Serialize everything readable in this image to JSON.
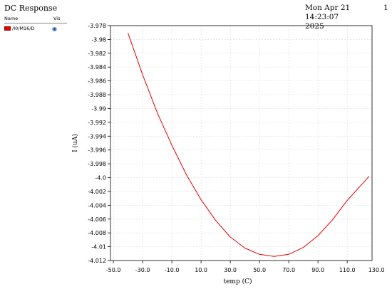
{
  "header": {
    "title": "DC Response",
    "timestamp_line1": "Mon Apr 21 14:23:07",
    "timestamp_line2": "2025",
    "page_number": "1"
  },
  "legend": {
    "name_header": "Name",
    "vis_header": "Vis",
    "items": [
      {
        "label": "/I0/M16/D",
        "color": "#e60000",
        "icon": "eye-icon"
      }
    ]
  },
  "chart_data": {
    "type": "line",
    "title": "",
    "xlabel": "temp (C)",
    "ylabel": "I (uA)",
    "xlim": [
      -52,
      127
    ],
    "ylim": [
      -4.012,
      -3.978
    ],
    "grid": true,
    "x_ticks": [
      -50,
      -30,
      -10,
      10,
      30,
      50,
      70,
      90,
      110,
      130
    ],
    "x_tick_labels": [
      "-50.0",
      "-30.0",
      "-10.0",
      "10.0",
      "30.0",
      "50.0",
      "70.0",
      "90.0",
      "110.0",
      "130.0"
    ],
    "y_ticks": [
      -3.978,
      -3.98,
      -3.982,
      -3.984,
      -3.986,
      -3.988,
      -3.99,
      -3.992,
      -3.994,
      -3.996,
      -3.998,
      -4.0,
      -4.002,
      -4.004,
      -4.006,
      -4.008,
      -4.01,
      -4.012
    ],
    "y_tick_labels": [
      "-3.978",
      "-3.98",
      "-3.982",
      "-3.984",
      "-3.986",
      "-3.988",
      "-3.99",
      "-3.992",
      "-3.994",
      "-3.996",
      "-3.998",
      "-4.0",
      "-4.002",
      "-4.004",
      "-4.006",
      "-4.008",
      "-4.01",
      "-4.012"
    ],
    "series": [
      {
        "color": "#e60000",
        "x": [
          -40,
          -30,
          -20,
          -10,
          0,
          10,
          20,
          30,
          40,
          50,
          60,
          70,
          80,
          90,
          100,
          110,
          120,
          125
        ],
        "y": [
          -3.9791,
          -3.9851,
          -3.9906,
          -3.9953,
          -3.9996,
          -4.0032,
          -4.0062,
          -4.0086,
          -4.0102,
          -4.0111,
          -4.0114,
          -4.0111,
          -4.0101,
          -4.0084,
          -4.0061,
          -4.0033,
          -4.001,
          -3.9998
        ]
      }
    ]
  }
}
